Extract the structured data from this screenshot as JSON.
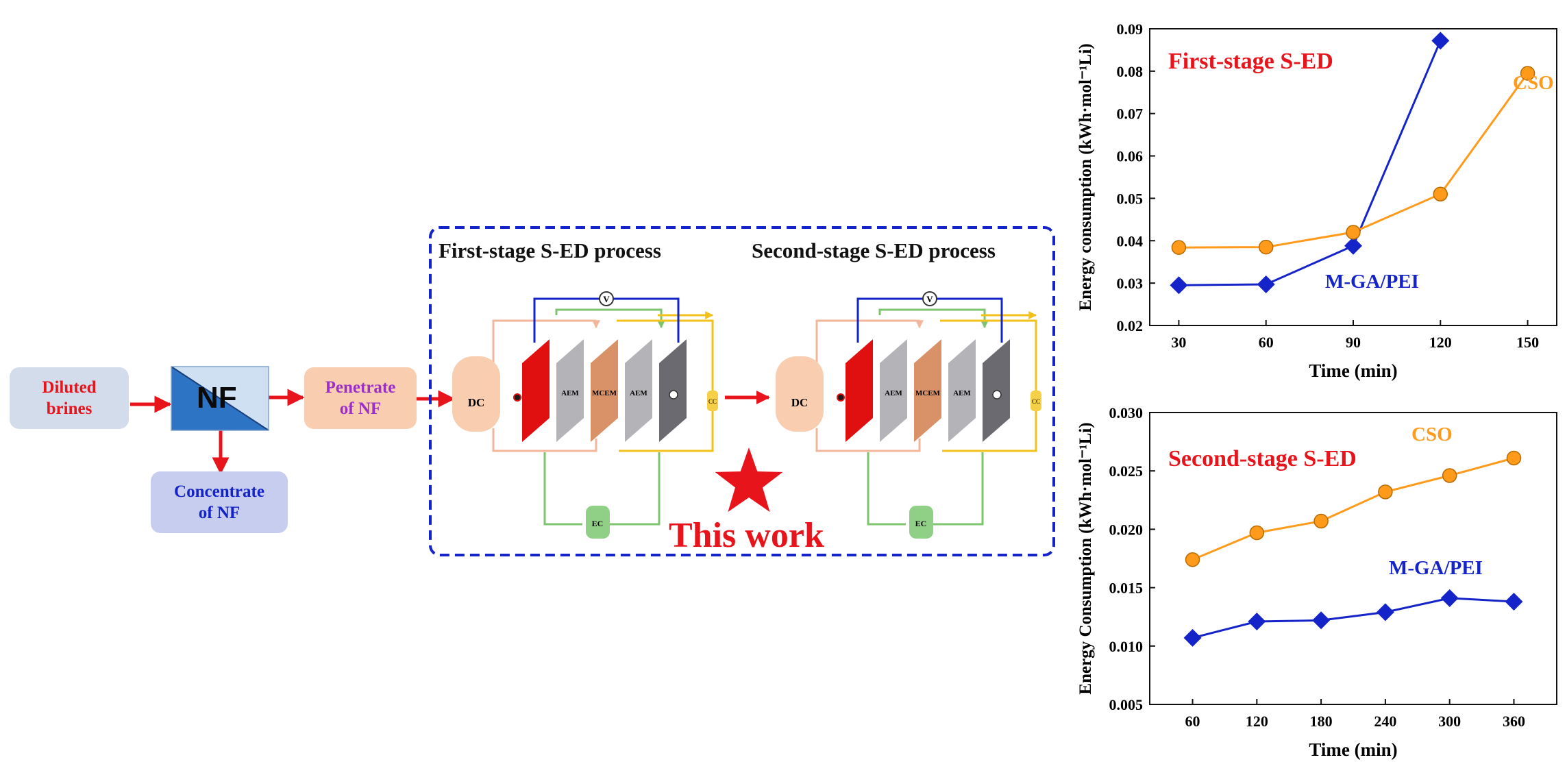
{
  "flow": {
    "diluted_brines": "Diluted\nbrines",
    "nf_label": "NF",
    "penetrate": "Penetrate\nof NF",
    "concentrate": "Concentrate\nof NF"
  },
  "process": {
    "first_title": "First-stage S-ED process",
    "second_title": "Second-stage S-ED process",
    "dc": "DC",
    "ec": "EC",
    "cc": "CC",
    "v": "V",
    "aem": "AEM",
    "mcem": "MCEM",
    "this_work": "This work"
  },
  "colors": {
    "red": "#e8141b",
    "blue": "#1424c8",
    "orange": "#ff9a1a",
    "purple": "#9b2fc8",
    "nf_blue": "#2d74c4",
    "nf_light": "#cfe0f3",
    "dc_fill": "#f8cdb0",
    "ec_fill": "#8fcf86",
    "dash": "#1424c8"
  },
  "chart_data": [
    {
      "type": "line",
      "annotation": "First-stage S-ED",
      "xlabel": "Time (min)",
      "ylabel": "Energy consumption (kWh·mol⁻¹Li)",
      "xlim": [
        20,
        160
      ],
      "ylim": [
        0.02,
        0.09
      ],
      "xticks": [
        30,
        60,
        90,
        120,
        150
      ],
      "yticks": [
        "0.02",
        "0.03",
        "0.04",
        "0.05",
        "0.06",
        "0.07",
        "0.08",
        "0.09"
      ],
      "series": [
        {
          "name": "M-GA/PEI",
          "color": "#1424c8",
          "marker": "diamond",
          "points": [
            [
              30,
              0.0295
            ],
            [
              60,
              0.0297
            ],
            [
              90,
              0.0388
            ],
            [
              120,
              0.0872
            ]
          ]
        },
        {
          "name": "CSO",
          "color": "#ff9a1a",
          "marker": "circle",
          "points": [
            [
              30,
              0.0384
            ],
            [
              60,
              0.0385
            ],
            [
              90,
              0.042
            ],
            [
              120,
              0.051
            ],
            [
              150,
              0.0795
            ]
          ]
        }
      ]
    },
    {
      "type": "line",
      "annotation": "Second-stage S-ED",
      "xlabel": "Time (min)",
      "ylabel": "Energy Consumption (kWh·mol⁻¹Li)",
      "xlim": [
        20,
        400
      ],
      "ylim": [
        0.005,
        0.03
      ],
      "xticks": [
        60,
        120,
        180,
        240,
        300,
        360
      ],
      "yticks": [
        "0.005",
        "0.010",
        "0.015",
        "0.020",
        "0.025",
        "0.030"
      ],
      "series": [
        {
          "name": "CSO",
          "color": "#ff9a1a",
          "marker": "circle",
          "points": [
            [
              60,
              0.0174
            ],
            [
              120,
              0.0197
            ],
            [
              180,
              0.0207
            ],
            [
              240,
              0.0232
            ],
            [
              300,
              0.0246
            ],
            [
              360,
              0.0261
            ]
          ]
        },
        {
          "name": "M-GA/PEI",
          "color": "#1424c8",
          "marker": "diamond",
          "points": [
            [
              60,
              0.0107
            ],
            [
              120,
              0.0121
            ],
            [
              180,
              0.0122
            ],
            [
              240,
              0.0129
            ],
            [
              300,
              0.0141
            ],
            [
              360,
              0.0138
            ]
          ]
        }
      ]
    }
  ]
}
